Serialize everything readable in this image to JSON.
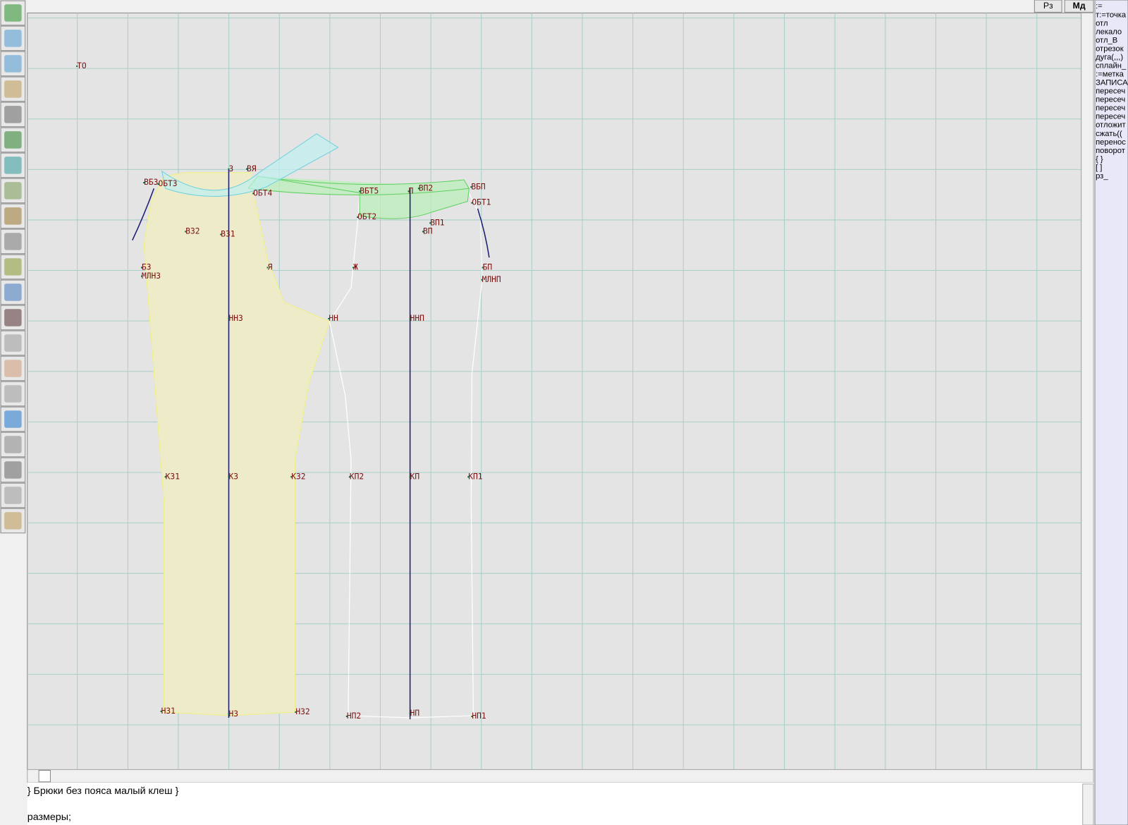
{
  "toolbar": {
    "buttons": [
      "Рз",
      "Мд"
    ]
  },
  "command_panel": {
    "items": [
      ":=",
      "т:=точка",
      "отл",
      "лекало",
      "отл_В",
      "отрезок",
      "дуга(,,,)",
      "сплайн_",
      ":=метка",
      "ЗАПИСА",
      "пересеч",
      "пересеч",
      "пересеч",
      "пересеч",
      "отложит",
      "сжать((",
      "перенос",
      "поворот",
      "{ }",
      "[ ]",
      "рз_"
    ]
  },
  "canvas": {
    "labels": [
      "ТО",
      "ВБЗ",
      "ОБТ3",
      "ВЗ2",
      "ВЗ1",
      "З",
      "ВЯ",
      "ОБТ4",
      "ВБТ5",
      "П",
      "ВП2",
      "ВБП",
      "ОБТ1",
      "ОБТ2",
      "ВП1",
      "ВП",
      "БЗ",
      "МЛНЗ",
      "Я",
      "Ж",
      "БП",
      "МЛНП",
      "ННЗ",
      "НН",
      "ННП",
      "КЗ1",
      "КЗ",
      "КЗ2",
      "КП2",
      "КП",
      "КП1",
      "НЗ1",
      "НЗ",
      "НЗ2",
      "НП2",
      "НП",
      "НП1"
    ]
  },
  "editor": {
    "lines": [
      "} Брюки без пояса малый клеш }",
      "размеры;"
    ]
  }
}
